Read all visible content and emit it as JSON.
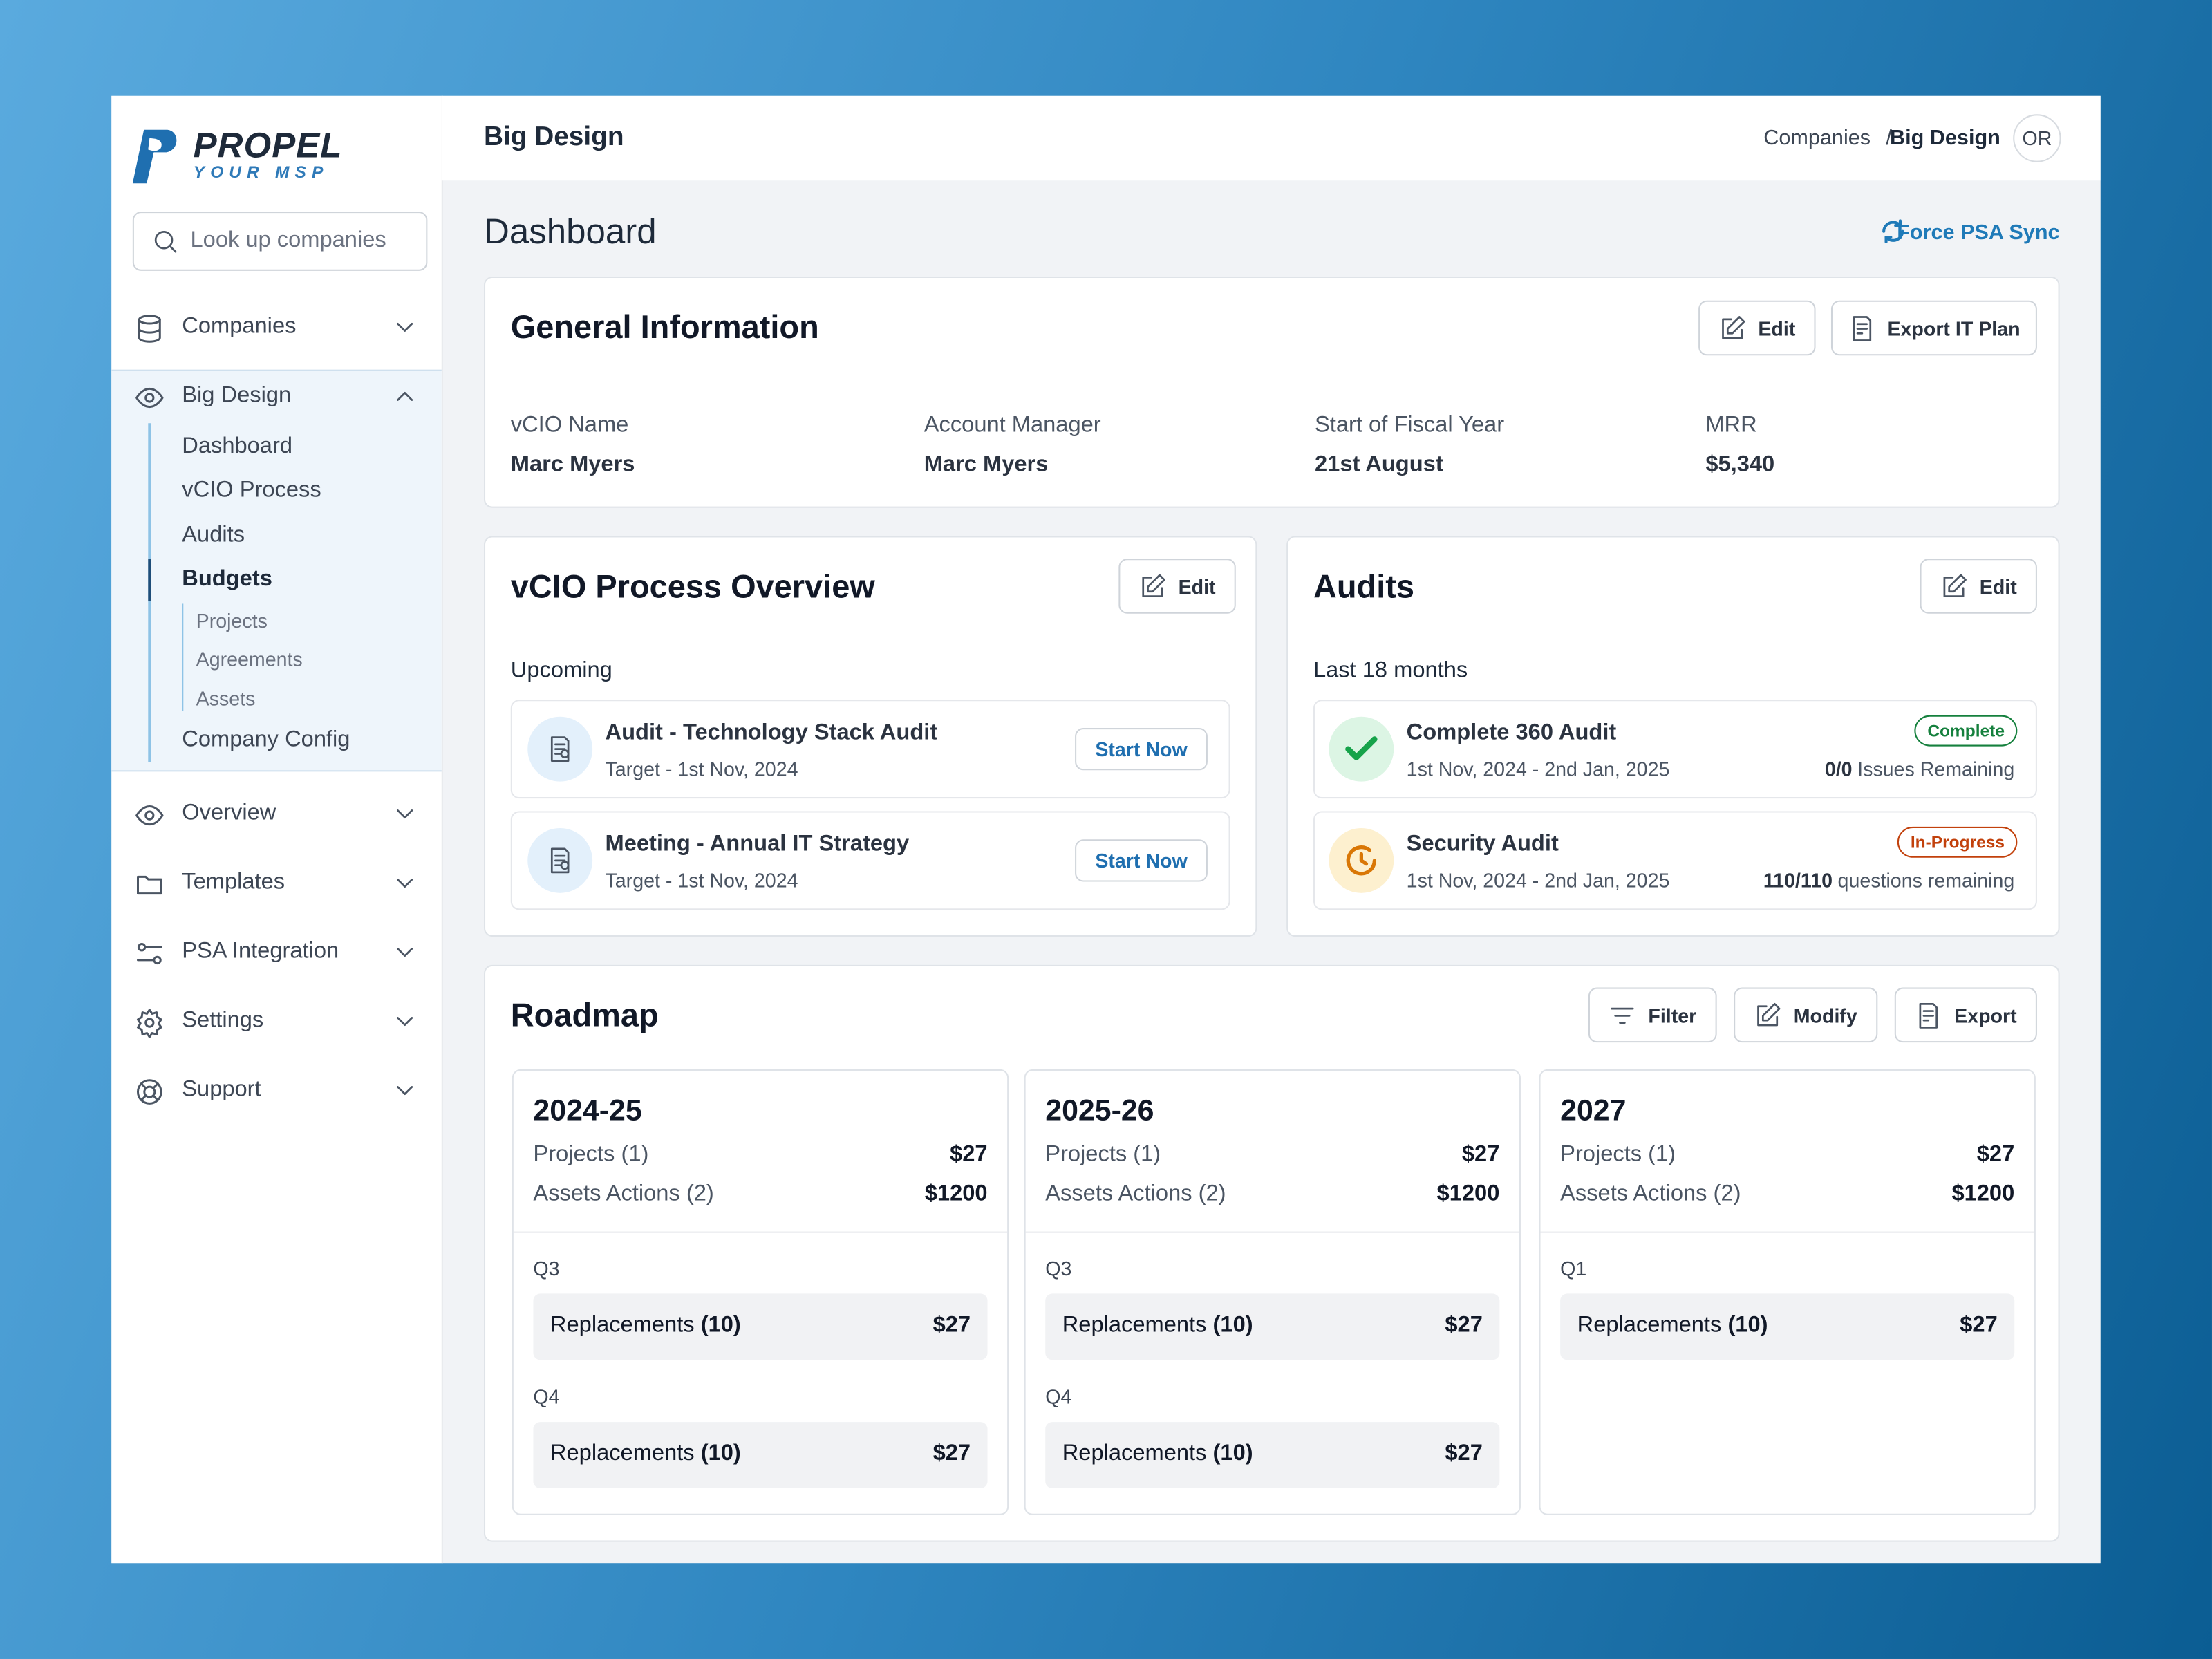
{
  "brand": {
    "name": "PROPEL",
    "tagline": "YOUR MSP"
  },
  "sidebar": {
    "search": "Look up companies",
    "top_nav": [
      "Companies"
    ],
    "company": {
      "name": "Big Design",
      "items": [
        "Dashboard",
        "vCIO Process",
        "Audits",
        "Budgets"
      ],
      "sub_items": [
        "Projects",
        "Agreements",
        "Assets"
      ],
      "last": "Company Config"
    },
    "bottom_nav": [
      "Overview",
      "Templates",
      "PSA Integration",
      "Settings",
      "Support"
    ]
  },
  "header": {
    "title": "Big Design",
    "breadcrumb": [
      "Companies",
      "Big Design"
    ],
    "separator": "/",
    "avatar": "OR"
  },
  "page": {
    "title": "Dashboard",
    "sync": "Force PSA Sync"
  },
  "general": {
    "title": "General Information",
    "buttons": [
      "Edit",
      "Export IT Plan"
    ],
    "fields": [
      {
        "label": "vCIO Name",
        "value": "Marc Myers"
      },
      {
        "label": "Account Manager",
        "value": "Marc Myers"
      },
      {
        "label": "Start of Fiscal Year",
        "value": "21st August"
      },
      {
        "label": "MRR",
        "value": "$5,340"
      }
    ]
  },
  "vcio": {
    "title": "vCIO Process Overview",
    "button": "Edit",
    "subtitle": "Upcoming",
    "items": [
      {
        "title": "Audit - Technology Stack Audit",
        "target": "Target - 1st Nov, 2024",
        "action": "Start Now"
      },
      {
        "title": "Meeting - Annual IT Strategy",
        "target": "Target - 1st Nov, 2024",
        "action": "Start Now"
      }
    ]
  },
  "audits": {
    "title": "Audits",
    "button": "Edit",
    "subtitle": "Last 18 months",
    "items": [
      {
        "title": "Complete 360 Audit",
        "dates": "1st Nov, 2024 - 2nd Jan, 2025",
        "status": "Complete",
        "count": "0/0",
        "count_text": "Issues Remaining"
      },
      {
        "title": "Security Audit",
        "dates": "1st Nov, 2024 - 2nd Jan, 2025",
        "status": "In-Progress",
        "count": "110/110",
        "count_text": "questions remaining"
      }
    ]
  },
  "roadmap": {
    "title": "Roadmap",
    "buttons": [
      "Filter",
      "Modify",
      "Export"
    ],
    "columns": [
      {
        "year": "2024-25",
        "summary": [
          {
            "label": "Projects (1)",
            "amount": "$27"
          },
          {
            "label": "Assets Actions (2)",
            "amount": "$1200"
          }
        ],
        "quarters": [
          {
            "label": "Q3",
            "items": [
              {
                "label": "Replacements",
                "count": "(10)",
                "amount": "$27"
              }
            ]
          },
          {
            "label": "Q4",
            "items": [
              {
                "label": "Replacements",
                "count": "(10)",
                "amount": "$27"
              }
            ]
          }
        ]
      },
      {
        "year": "2025-26",
        "summary": [
          {
            "label": "Projects (1)",
            "amount": "$27"
          },
          {
            "label": "Assets Actions (2)",
            "amount": "$1200"
          }
        ],
        "quarters": [
          {
            "label": "Q3",
            "items": [
              {
                "label": "Replacements",
                "count": "(10)",
                "amount": "$27"
              }
            ]
          },
          {
            "label": "Q4",
            "items": [
              {
                "label": "Replacements",
                "count": "(10)",
                "amount": "$27"
              }
            ]
          }
        ]
      },
      {
        "year": "2027",
        "summary": [
          {
            "label": "Projects (1)",
            "amount": "$27"
          },
          {
            "label": "Assets Actions (2)",
            "amount": "$1200"
          }
        ],
        "quarters": [
          {
            "label": "Q1",
            "items": [
              {
                "label": "Replacements",
                "count": "(10)",
                "amount": "$27"
              }
            ]
          }
        ]
      }
    ]
  }
}
